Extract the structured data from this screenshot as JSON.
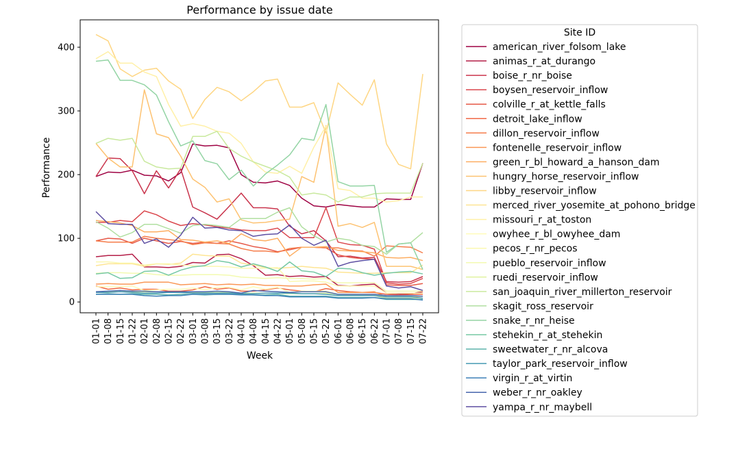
{
  "chart_data": {
    "type": "line",
    "title": "Performance by issue date",
    "xlabel": "Week",
    "ylabel": "Performance",
    "ylim": [
      -17,
      443
    ],
    "yticks": [
      0,
      100,
      200,
      300,
      400
    ],
    "grid": false,
    "legend_title": "Site ID",
    "legend_position": "right, outside plot",
    "categories": [
      "01-01",
      "01-08",
      "01-15",
      "01-22",
      "02-01",
      "02-08",
      "02-15",
      "02-22",
      "03-01",
      "03-08",
      "03-15",
      "03-22",
      "04-01",
      "04-08",
      "04-15",
      "04-22",
      "05-01",
      "05-08",
      "05-15",
      "05-22",
      "06-01",
      "06-08",
      "06-15",
      "06-22",
      "07-01",
      "07-08",
      "07-15",
      "07-22"
    ],
    "series": [
      {
        "name": "american_river_folsom_lake",
        "color": "#9e0142",
        "values": [
          197,
          204,
          203,
          207,
          199,
          198,
          190,
          203,
          248,
          245,
          246,
          242,
          200,
          188,
          187,
          190,
          183,
          163,
          151,
          149,
          153,
          151,
          149,
          149,
          162,
          161,
          161,
          218
        ]
      },
      {
        "name": "animas_r_at_durango",
        "color": "#b41d47",
        "values": [
          71,
          73,
          73,
          75,
          55,
          55,
          54,
          56,
          62,
          61,
          74,
          75,
          68,
          57,
          42,
          43,
          40,
          41,
          39,
          40,
          26,
          25,
          27,
          28,
          14,
          13,
          13,
          16
        ]
      },
      {
        "name": "boise_r_nr_boise",
        "color": "#c9344c",
        "values": [
          197,
          226,
          225,
          206,
          170,
          206,
          179,
          209,
          149,
          140,
          130,
          150,
          171,
          148,
          148,
          146,
          119,
          107,
          112,
          96,
          71,
          72,
          69,
          70,
          32,
          31,
          32,
          40
        ]
      },
      {
        "name": "boysen_reservoir_inflow",
        "color": "#da464c",
        "values": [
          125,
          125,
          128,
          126,
          143,
          137,
          127,
          120,
          123,
          121,
          118,
          116,
          113,
          112,
          112,
          116,
          101,
          101,
          101,
          148,
          94,
          90,
          89,
          83,
          30,
          28,
          29,
          37
        ]
      },
      {
        "name": "colville_r_at_kettle_falls",
        "color": "#e65847",
        "values": [
          96,
          100,
          99,
          92,
          100,
          96,
          92,
          95,
          92,
          94,
          92,
          96,
          92,
          87,
          84,
          79,
          82,
          86,
          86,
          85,
          74,
          70,
          68,
          67,
          27,
          26,
          26,
          29
        ]
      },
      {
        "name": "detroit_lake_inflow",
        "color": "#f06744",
        "values": [
          25,
          20,
          22,
          19,
          20,
          20,
          17,
          17,
          19,
          24,
          20,
          22,
          17,
          17,
          19,
          22,
          19,
          17,
          16,
          21,
          18,
          16,
          15,
          15,
          12,
          11,
          12,
          12
        ]
      },
      {
        "name": "dillon_reservoir_inflow",
        "color": "#f57c4a",
        "values": [
          96,
          94,
          94,
          94,
          103,
          100,
          98,
          96,
          90,
          93,
          92,
          91,
          84,
          80,
          80,
          78,
          84,
          86,
          86,
          85,
          85,
          81,
          80,
          72,
          88,
          87,
          86,
          77
        ]
      },
      {
        "name": "fontenelle_reservoir_inflow",
        "color": "#fa9756",
        "values": [
          28,
          29,
          28,
          28,
          31,
          31,
          31,
          27,
          28,
          29,
          27,
          28,
          27,
          28,
          26,
          26,
          25,
          25,
          27,
          28,
          15,
          15,
          15,
          16,
          8,
          8,
          8,
          9
        ]
      },
      {
        "name": "green_r_bl_howard_a_hanson_dam",
        "color": "#fdad61",
        "values": [
          128,
          126,
          124,
          120,
          110,
          110,
          112,
          98,
          97,
          94,
          96,
          92,
          107,
          98,
          96,
          100,
          72,
          86,
          86,
          87,
          81,
          80,
          79,
          77,
          70,
          69,
          70,
          65
        ]
      },
      {
        "name": "hungry_horse_reservoir_inflow",
        "color": "#fdc271",
        "values": [
          249,
          226,
          212,
          212,
          333,
          264,
          258,
          229,
          193,
          180,
          157,
          162,
          129,
          124,
          125,
          128,
          130,
          197,
          188,
          277,
          119,
          123,
          117,
          125,
          56,
          56,
          56,
          51
        ]
      },
      {
        "name": "libby_reservoir_inflow",
        "color": "#fed683",
        "values": [
          420,
          410,
          366,
          354,
          364,
          367,
          347,
          334,
          288,
          318,
          337,
          330,
          316,
          330,
          347,
          350,
          306,
          306,
          313,
          265,
          344,
          326,
          309,
          349,
          248,
          216,
          209,
          358
        ]
      },
      {
        "name": "merced_river_yosemite_at_pohono_bridge",
        "color": "#fee593",
        "values": [
          57,
          60,
          60,
          60,
          56,
          60,
          59,
          61,
          75,
          73,
          72,
          72,
          61,
          58,
          54,
          53,
          54,
          56,
          54,
          53,
          47,
          46,
          45,
          45,
          46,
          46,
          46,
          58
        ]
      },
      {
        "name": "missouri_r_at_toston",
        "color": "#fff0a7",
        "values": [
          382,
          393,
          375,
          375,
          361,
          354,
          310,
          276,
          280,
          276,
          268,
          265,
          249,
          220,
          204,
          202,
          213,
          202,
          243,
          276,
          178,
          175,
          163,
          163,
          157,
          159,
          165,
          165
        ]
      },
      {
        "name": "owyhee_r_bl_owyhee_dam",
        "color": "#fffbb8",
        "values": [
          24,
          24,
          24,
          25,
          18,
          19,
          20,
          20,
          22,
          19,
          23,
          23,
          19,
          24,
          20,
          23,
          15,
          17,
          17,
          17,
          12,
          12,
          12,
          12,
          8,
          9,
          9,
          9
        ]
      },
      {
        "name": "pecos_r_nr_pecos",
        "color": "#fbf8b0",
        "values": [
          63,
          63,
          61,
          61,
          58,
          60,
          60,
          58,
          57,
          56,
          56,
          55,
          53,
          53,
          53,
          54,
          32,
          33,
          33,
          31,
          25,
          25,
          25,
          25,
          14,
          14,
          14,
          14
        ]
      },
      {
        "name": "pueblo_reservoir_inflow",
        "color": "#f3fab0",
        "values": [
          45,
          46,
          46,
          45,
          45,
          43,
          42,
          42,
          43,
          43,
          43,
          42,
          39,
          38,
          37,
          38,
          37,
          37,
          36,
          37,
          30,
          30,
          30,
          30,
          17,
          17,
          17,
          17
        ]
      },
      {
        "name": "ruedi_reservoir_inflow",
        "color": "#e0f3a0",
        "values": [
          16,
          16,
          16,
          16,
          16,
          16,
          16,
          15,
          15,
          15,
          15,
          15,
          14,
          14,
          14,
          14,
          13,
          13,
          13,
          14,
          10,
          10,
          10,
          10,
          6,
          6,
          6,
          6
        ]
      },
      {
        "name": "san_joaquin_river_millerton_reservoir",
        "color": "#c9e99e",
        "values": [
          249,
          257,
          254,
          257,
          221,
          212,
          209,
          210,
          260,
          260,
          268,
          241,
          229,
          220,
          213,
          206,
          196,
          168,
          171,
          168,
          157,
          165,
          165,
          170,
          171,
          171,
          171,
          218
        ]
      },
      {
        "name": "skagit_ross_reservoir",
        "color": "#b0dfa0",
        "values": [
          126,
          116,
          102,
          109,
          122,
          122,
          115,
          108,
          120,
          122,
          120,
          117,
          131,
          131,
          131,
          141,
          148,
          118,
          104,
          94,
          100,
          97,
          89,
          87,
          75,
          91,
          93,
          109
        ]
      },
      {
        "name": "snake_r_nr_heise",
        "color": "#93d4a4",
        "values": [
          378,
          380,
          348,
          348,
          341,
          325,
          283,
          245,
          253,
          222,
          217,
          192,
          207,
          182,
          201,
          215,
          231,
          257,
          254,
          310,
          189,
          182,
          182,
          183,
          78,
          91,
          93,
          51
        ]
      },
      {
        "name": "stehekin_r_at_stehekin",
        "color": "#75c8a4",
        "values": [
          44,
          46,
          37,
          38,
          48,
          49,
          42,
          50,
          55,
          57,
          65,
          62,
          55,
          60,
          55,
          48,
          63,
          49,
          47,
          40,
          53,
          52,
          46,
          42,
          45,
          47,
          48,
          44
        ]
      },
      {
        "name": "sweetwater_r_nr_alcova",
        "color": "#5bb2aa",
        "values": [
          12,
          13,
          12,
          13,
          12,
          12,
          11,
          12,
          12,
          11,
          12,
          12,
          12,
          11,
          11,
          12,
          9,
          9,
          9,
          9,
          7,
          7,
          7,
          7,
          4,
          4,
          4,
          4
        ]
      },
      {
        "name": "taylor_park_reservoir_inflow",
        "color": "#4599b2",
        "values": [
          15,
          15,
          16,
          15,
          14,
          14,
          15,
          15,
          14,
          14,
          14,
          14,
          13,
          13,
          14,
          14,
          14,
          13,
          13,
          12,
          10,
          10,
          10,
          10,
          8,
          8,
          8,
          6
        ]
      },
      {
        "name": "virgin_r_at_virtin",
        "color": "#3b7fb7",
        "values": [
          12,
          12,
          12,
          12,
          10,
          9,
          10,
          10,
          12,
          12,
          12,
          12,
          11,
          11,
          10,
          10,
          8,
          8,
          8,
          8,
          6,
          6,
          6,
          7,
          5,
          5,
          5,
          3
        ]
      },
      {
        "name": "weber_r_nr_oakley",
        "color": "#4765ad",
        "values": [
          16,
          17,
          18,
          17,
          17,
          16,
          16,
          16,
          16,
          16,
          17,
          16,
          14,
          18,
          17,
          16,
          15,
          16,
          16,
          16,
          12,
          12,
          12,
          12,
          10,
          10,
          10,
          9
        ]
      },
      {
        "name": "yampa_r_nr_maybell",
        "color": "#5e4fa2",
        "values": [
          142,
          123,
          122,
          122,
          92,
          99,
          86,
          105,
          133,
          116,
          117,
          113,
          112,
          103,
          106,
          107,
          121,
          100,
          89,
          97,
          56,
          62,
          65,
          67,
          25,
          22,
          24,
          18
        ]
      }
    ]
  }
}
